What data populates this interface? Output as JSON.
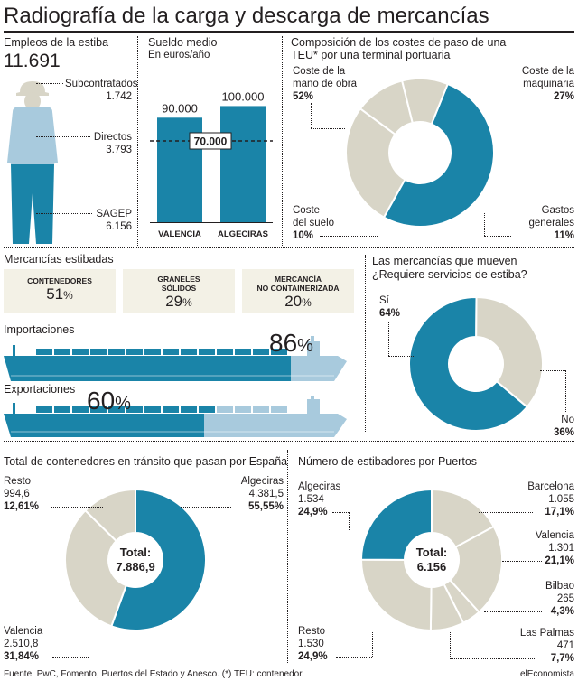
{
  "title": "Radiografía de la carga y descarga de mercancías",
  "colors": {
    "blue": "#1a84a8",
    "beige": "#d8d5c7",
    "light_blue": "#a8cadd",
    "dark": "#231f20"
  },
  "empleos": {
    "heading": "Empleos de la estiba",
    "total": "11.691",
    "items": [
      {
        "label": "Subcontratados",
        "value": "1.742"
      },
      {
        "label": "Directos",
        "value": "3.793"
      },
      {
        "label": "SAGEP",
        "value": "6.156"
      }
    ]
  },
  "sueldo": {
    "heading": "Sueldo medio",
    "subheading": "En euros/año",
    "reference_label": "70.000"
  },
  "composicion": {
    "heading_line1": "Composición de los costes de paso de una",
    "heading_line2": "TEU* por una terminal portuaria",
    "labels": [
      {
        "text1": "Coste de la",
        "text2": "mano de obra",
        "pct": "52%"
      },
      {
        "text1": "Coste de la",
        "text2": "maquinaria",
        "pct": "27%"
      },
      {
        "text1": "Gastos",
        "text2": "generales",
        "pct": "11%"
      },
      {
        "text1": "Coste",
        "text2": "del suelo",
        "pct": "10%"
      }
    ]
  },
  "mercancias": {
    "heading": "Mercancías estibadas",
    "boxes": [
      {
        "line1": "CONTENEDORES",
        "line2": "",
        "value": "51",
        "unit": "%"
      },
      {
        "line1": "GRANELES",
        "line2": "SÓLIDOS",
        "value": "29",
        "unit": "%"
      },
      {
        "line1": "MERCANCÍA",
        "line2": "NO CONTAINERIZADA",
        "value": "20",
        "unit": "%"
      }
    ]
  },
  "importaciones": {
    "label": "Importaciones",
    "value": "86",
    "unit": "%",
    "fraction": 0.86
  },
  "exportaciones": {
    "label": "Exportaciones",
    "value": "60",
    "unit": "%",
    "fraction": 0.6
  },
  "mueven": {
    "heading": "Las mercancías que mueven",
    "question": "¿Requiere servicios de estiba?",
    "si_label": "Sí",
    "si_pct": "64%",
    "no_label": "No",
    "no_pct": "36%"
  },
  "transito": {
    "heading": "Total de contenedores en tránsito que pasan por España",
    "total_label": "Total:",
    "total_value": "7.886,9",
    "labels": [
      {
        "name": "Resto",
        "value": "994,6",
        "pct": "12,61%"
      },
      {
        "name": "Algeciras",
        "value": "4.381,5",
        "pct": "55,55%"
      },
      {
        "name": "Valencia",
        "value": "2.510,8",
        "pct": "31,84%"
      }
    ]
  },
  "estibadores": {
    "heading": "Número de estibadores por Puertos",
    "total_label": "Total:",
    "total_value": "6.156",
    "labels": [
      {
        "name": "Algeciras",
        "value": "1.534",
        "pct": "24,9%"
      },
      {
        "name": "Barcelona",
        "value": "1.055",
        "pct": "17,1%"
      },
      {
        "name": "Valencia",
        "value": "1.301",
        "pct": "21,1%"
      },
      {
        "name": "Bilbao",
        "value": "265",
        "pct": "4,3%"
      },
      {
        "name": "Las Palmas",
        "value": "471",
        "pct": "7,7%"
      },
      {
        "name": "Resto",
        "value": "1.530",
        "pct": "24,9%"
      }
    ]
  },
  "footer": {
    "source": "Fuente: PwC, Fomento, Puertos del Estado y Anesco. (*) TEU: contenedor.",
    "brand": "elEconomista"
  },
  "chart_data": [
    {
      "type": "bar",
      "categories": [
        "VALENCIA",
        "ALGECIRAS"
      ],
      "values": [
        90000,
        100000
      ],
      "value_labels": [
        "90.000",
        "100.000"
      ],
      "reference_line": 70000,
      "ylim": [
        0,
        140000
      ]
    },
    {
      "type": "pie",
      "labels": [
        "Coste de la mano de obra",
        "Coste de la maquinaria",
        "Gastos generales",
        "Coste del suelo"
      ],
      "values": [
        52,
        27,
        11,
        10
      ]
    },
    {
      "type": "pie",
      "labels": [
        "Sí",
        "No"
      ],
      "values": [
        64,
        36
      ]
    },
    {
      "type": "pie",
      "labels": [
        "Algeciras",
        "Valencia",
        "Resto"
      ],
      "values": [
        4381.5,
        2510.8,
        994.6
      ]
    },
    {
      "type": "pie",
      "labels": [
        "Barcelona",
        "Valencia",
        "Bilbao",
        "Las Palmas",
        "Resto",
        "Algeciras"
      ],
      "values": [
        1055,
        1301,
        265,
        471,
        1530,
        1534
      ]
    }
  ]
}
